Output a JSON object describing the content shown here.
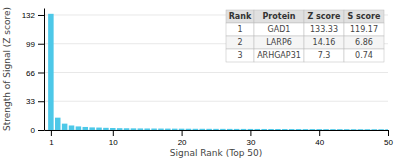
{
  "chart_data": {
    "type": "bar",
    "xlabel": "Signal Rank (Top 50)",
    "ylabel": "Strength of Signal (Z score)",
    "x": [
      1,
      2,
      3,
      4,
      5,
      6,
      7,
      8,
      9,
      10,
      11,
      12,
      13,
      14,
      15,
      16,
      17,
      18,
      19,
      20,
      21,
      22,
      23,
      24,
      25,
      26,
      27,
      28,
      29,
      30,
      31,
      32,
      33,
      34,
      35,
      36,
      37,
      38,
      39,
      40,
      41,
      42,
      43,
      44,
      45,
      46,
      47,
      48,
      49,
      50
    ],
    "values": [
      133.33,
      14.16,
      7.3,
      5.2,
      4.1,
      3.5,
      3.0,
      2.8,
      2.5,
      2.3,
      2.1,
      2.0,
      1.9,
      1.8,
      1.75,
      1.7,
      1.65,
      1.6,
      1.55,
      1.5,
      1.45,
      1.4,
      1.38,
      1.35,
      1.32,
      1.3,
      1.28,
      1.26,
      1.24,
      1.22,
      1.2,
      1.18,
      1.16,
      1.14,
      1.12,
      1.1,
      1.08,
      1.06,
      1.04,
      1.02,
      1.0,
      0.98,
      0.96,
      0.94,
      0.92,
      0.9,
      0.88,
      0.86,
      0.84,
      0.82
    ],
    "color": "#4dc8e8",
    "xlim": [
      0,
      50
    ],
    "ylim": [
      0,
      140
    ],
    "xticks": [
      1,
      10,
      20,
      30,
      40,
      50
    ],
    "yticks": [
      0,
      33,
      66,
      99,
      132
    ],
    "grid": true,
    "table": {
      "headers": [
        "Rank",
        "Protein",
        "Z score",
        "S score"
      ],
      "rows": [
        [
          "1",
          "GAD1",
          "133.33",
          "119.17"
        ],
        [
          "2",
          "LARP6",
          "14.16",
          "6.86"
        ],
        [
          "3",
          "ARHGAP31",
          "7.3",
          "0.74"
        ]
      ]
    }
  }
}
